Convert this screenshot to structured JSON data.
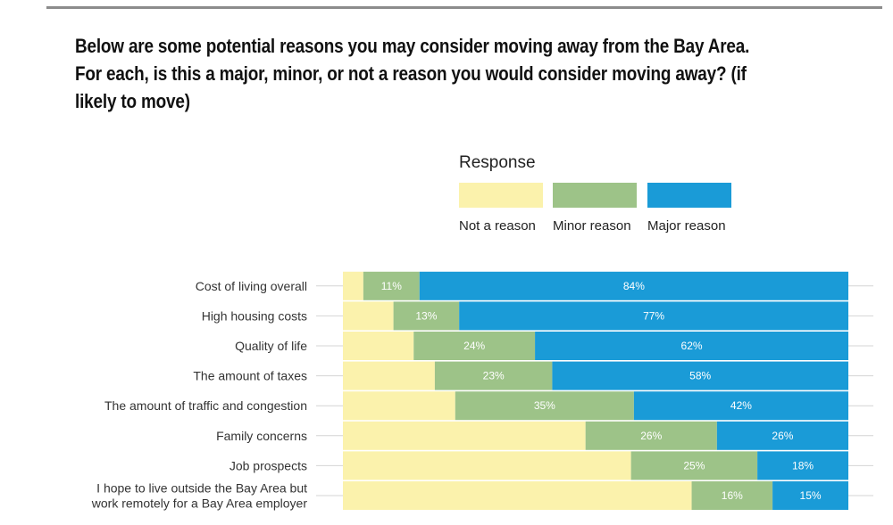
{
  "title": "Below are some potential reasons you may consider moving away from the Bay Area. For each, is this a major, minor, or not a reason you would consider moving away? (if likely to move)",
  "legend": {
    "title": "Response",
    "items": [
      {
        "label": "Not a reason",
        "color": "#fbf2ac"
      },
      {
        "label": "Minor reason",
        "color": "#9dc388"
      },
      {
        "label": "Major reason",
        "color": "#1a9bd7"
      }
    ]
  },
  "chart_data": {
    "type": "bar",
    "orientation": "horizontal",
    "stacked": true,
    "categories": [
      [
        "Cost of living overall"
      ],
      [
        "High housing costs"
      ],
      [
        "Quality of life"
      ],
      [
        "The amount of taxes"
      ],
      [
        "The amount of traffic and congestion"
      ],
      [
        "Family concerns"
      ],
      [
        "Job prospects"
      ],
      [
        "I hope to live outside the Bay Area but",
        "work remotely for a Bay Area employer"
      ]
    ],
    "series": [
      {
        "name": "Not a reason",
        "color": "#fbf2ac",
        "values": [
          4,
          10,
          14,
          18,
          22,
          48,
          57,
          69
        ],
        "labels": [
          "",
          "",
          "",
          "",
          "",
          "",
          "",
          ""
        ]
      },
      {
        "name": "Minor reason",
        "color": "#9dc388",
        "values": [
          11,
          13,
          24,
          23,
          35,
          26,
          25,
          16
        ],
        "labels": [
          "11%",
          "13%",
          "24%",
          "23%",
          "35%",
          "26%",
          "25%",
          "16%"
        ]
      },
      {
        "name": "Major reason",
        "color": "#1a9bd7",
        "values": [
          84,
          77,
          62,
          58,
          42,
          26,
          18,
          15
        ],
        "labels": [
          "84%",
          "77%",
          "62%",
          "58%",
          "42%",
          "26%",
          "18%",
          "15%"
        ]
      }
    ],
    "xlim": [
      0,
      100
    ],
    "legend_position": "top"
  }
}
